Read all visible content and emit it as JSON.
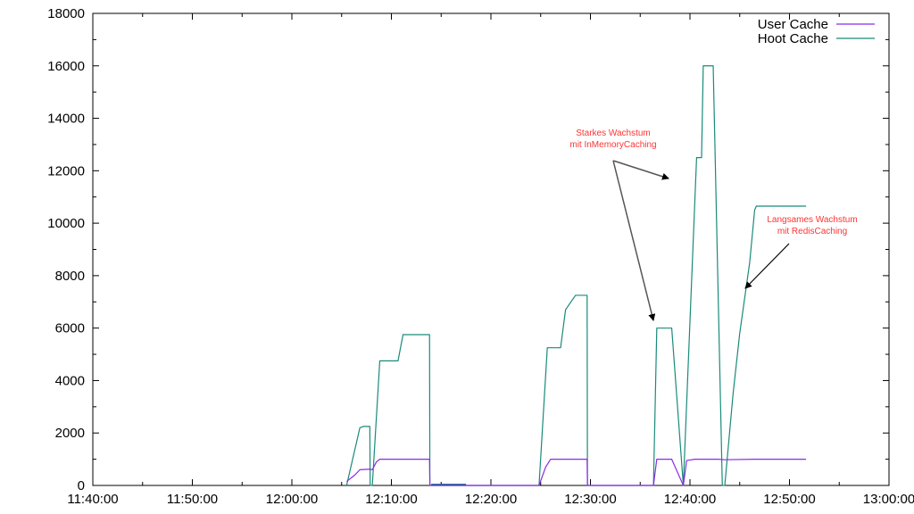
{
  "chart_data": {
    "type": "line",
    "title": "",
    "xlabel": "",
    "ylabel": "",
    "xlim": [
      "11:40:00",
      "13:00:00"
    ],
    "ylim": [
      0,
      18000
    ],
    "x_ticks": [
      "11:40:00",
      "11:50:00",
      "12:00:00",
      "12:10:00",
      "12:20:00",
      "12:30:00",
      "12:40:00",
      "12:50:00",
      "13:00:00"
    ],
    "y_ticks": [
      "0",
      "2000",
      "4000",
      "6000",
      "8000",
      "10000",
      "12000",
      "14000",
      "16000",
      "18000"
    ],
    "grid": false,
    "legend_position": "top-right",
    "series": [
      {
        "name": "User Cache",
        "color": "#8a2be2",
        "points": [
          [
            "12:05:30",
            150
          ],
          [
            "12:06:20",
            400
          ],
          [
            "12:06:50",
            600
          ],
          [
            "12:07:50",
            620
          ],
          [
            "12:08:05",
            600
          ],
          [
            "12:08:30",
            900
          ],
          [
            "12:08:50",
            1000
          ],
          [
            "12:13:50",
            1000
          ],
          [
            "12:13:52",
            0
          ],
          [
            "12:18:00",
            0
          ],
          [
            "12:24:50",
            0
          ],
          [
            "12:25:30",
            700
          ],
          [
            "12:26:00",
            1000
          ],
          [
            "12:29:40",
            1000
          ],
          [
            "12:29:42",
            0
          ],
          [
            "12:36:20",
            0
          ],
          [
            "12:36:40",
            1000
          ],
          [
            "12:38:10",
            1000
          ],
          [
            "12:39:20",
            0
          ],
          [
            "12:39:40",
            950
          ],
          [
            "12:40:30",
            1000
          ],
          [
            "12:42:50",
            1000
          ],
          [
            "12:43:30",
            980
          ],
          [
            "12:46:30",
            1000
          ],
          [
            "12:51:40",
            1000
          ]
        ]
      },
      {
        "name": "Hoot Cache",
        "color": "#1a8a7a",
        "points": [
          [
            "12:05:30",
            0
          ],
          [
            "12:06:50",
            2200
          ],
          [
            "12:07:10",
            2250
          ],
          [
            "12:07:50",
            2250
          ],
          [
            "12:07:52",
            0
          ],
          [
            "12:08:05",
            0
          ],
          [
            "12:08:50",
            4750
          ],
          [
            "12:10:40",
            4750
          ],
          [
            "12:11:10",
            5750
          ],
          [
            "12:13:50",
            5750
          ],
          [
            "12:13:52",
            0
          ],
          [
            "12:18:00",
            0
          ],
          [
            "12:24:50",
            0
          ],
          [
            "12:25:40",
            5250
          ],
          [
            "12:27:00",
            5250
          ],
          [
            "12:27:30",
            6700
          ],
          [
            "12:28:30",
            7250
          ],
          [
            "12:29:40",
            7250
          ],
          [
            "12:29:42",
            0
          ],
          [
            "12:36:20",
            0
          ],
          [
            "12:36:40",
            6000
          ],
          [
            "12:38:10",
            6000
          ],
          [
            "12:39:20",
            0
          ],
          [
            "12:40:40",
            12500
          ],
          [
            "12:41:10",
            12500
          ],
          [
            "12:41:20",
            16000
          ],
          [
            "12:42:20",
            16000
          ],
          [
            "12:43:15",
            0
          ],
          [
            "12:43:30",
            0
          ],
          [
            "12:44:20",
            3500
          ],
          [
            "12:45:00",
            5800
          ],
          [
            "12:46:00",
            8500
          ],
          [
            "12:46:30",
            10500
          ],
          [
            "12:46:40",
            10650
          ],
          [
            "12:51:40",
            10650
          ]
        ]
      }
    ],
    "annotations": [
      {
        "lines": [
          "Starkes Wachstum",
          "mit InMemoryCaching"
        ],
        "text_anchor": [
          12600,
          12800
        ],
        "arrows_to": [
          [
            12200,
            12600
          ],
          [
            6000,
            12400
          ]
        ],
        "arrow_from": [
          12400,
          12350
        ]
      },
      {
        "lines": [
          "Langsames Wachstum",
          "mit RedisCaching"
        ],
        "text_anchor": [
          10000,
          12900
        ],
        "arrows_to": [
          [
            7500,
            12580
          ]
        ],
        "arrow_from": [
          9300,
          12640
        ]
      }
    ],
    "annotation_color": "#ff3333"
  }
}
